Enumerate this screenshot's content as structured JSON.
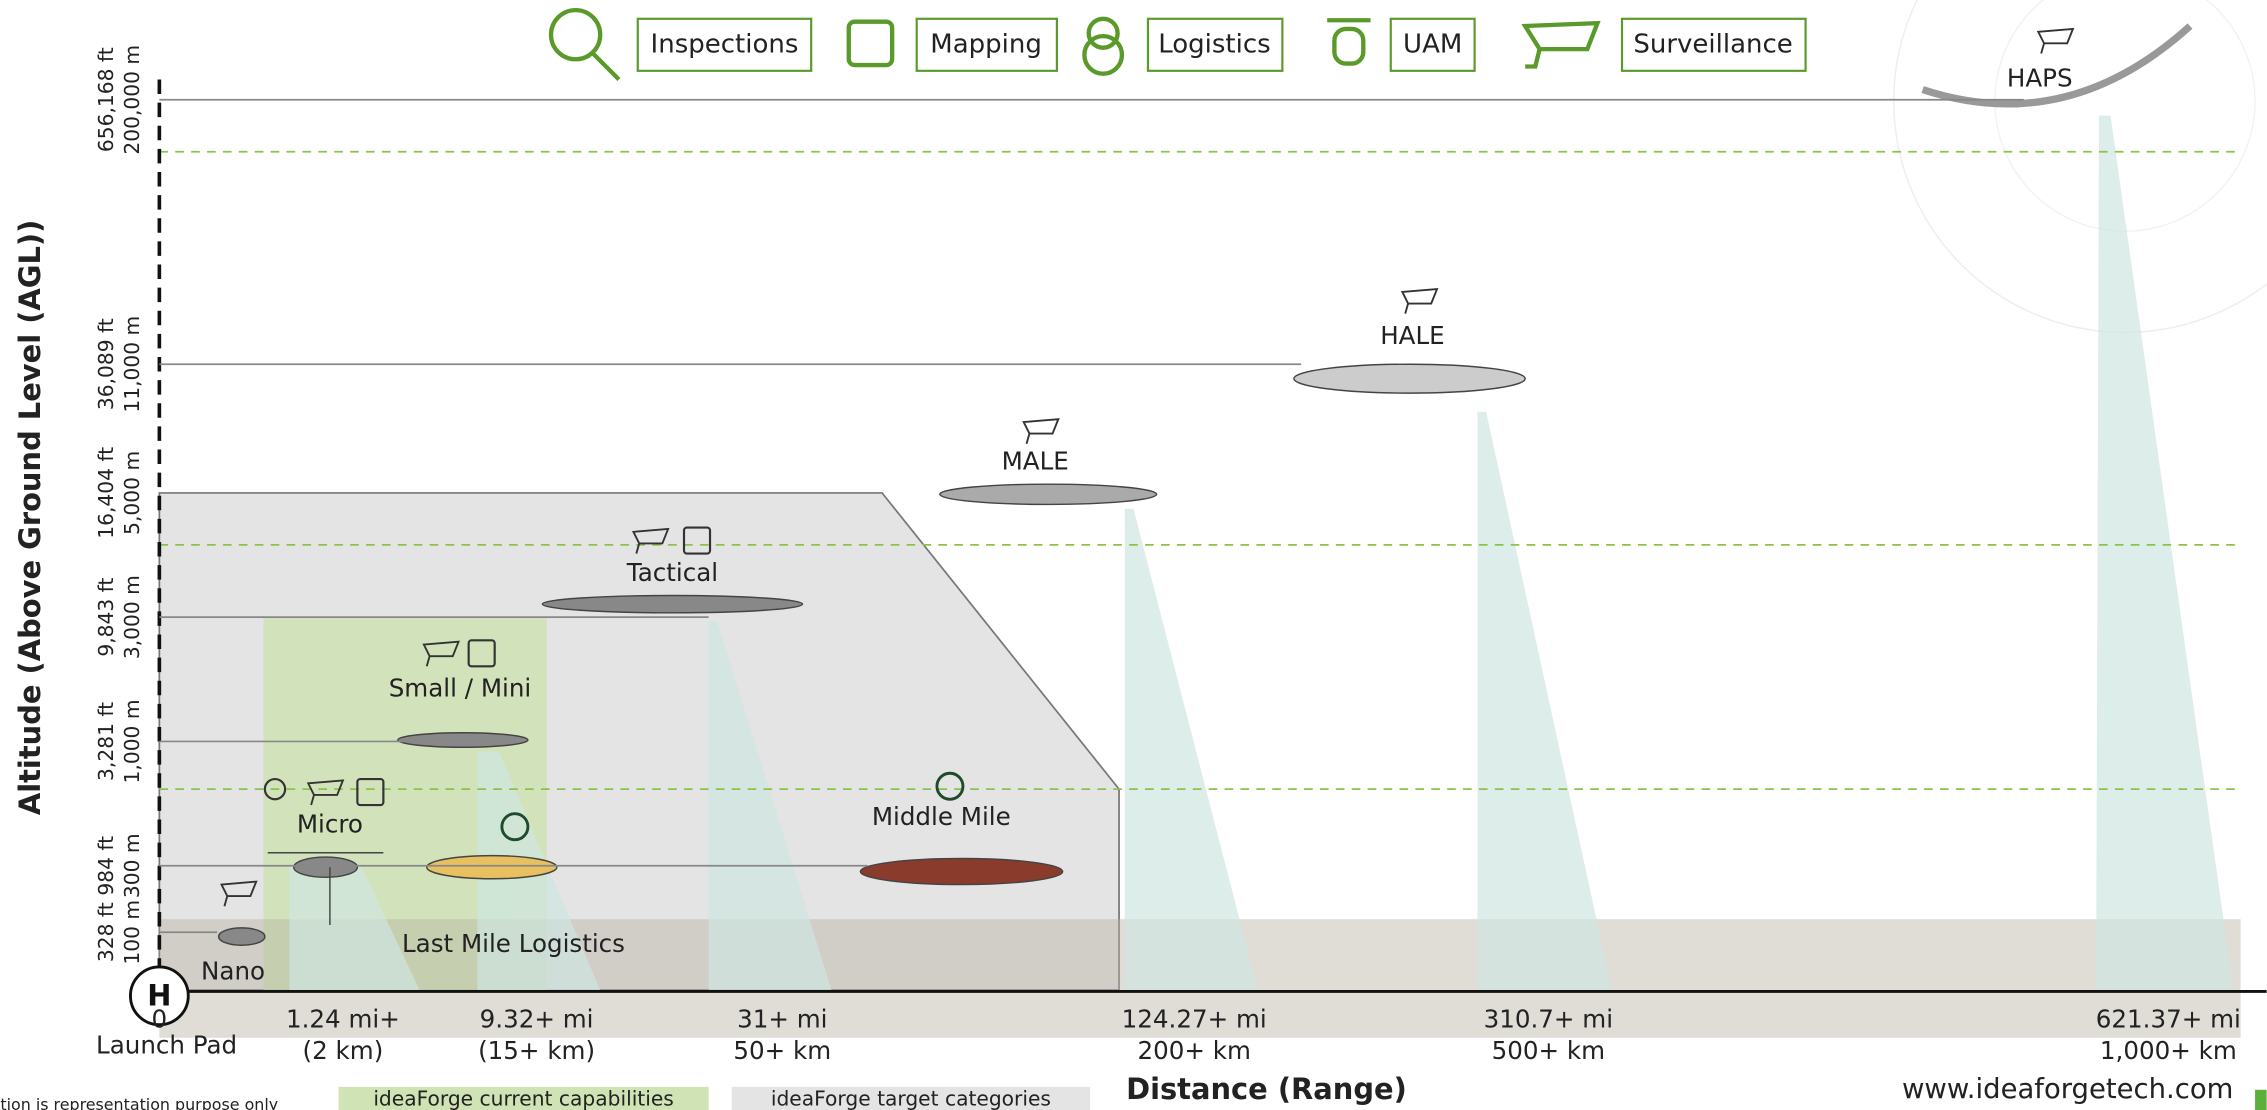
{
  "legend": [
    "Inspections",
    "Mapping",
    "Logistics",
    "UAM",
    "Surveillance"
  ],
  "y_axis": {
    "title": "Altitude (Above Ground Level (AGL))",
    "levels": [
      {
        "meters": "100 m",
        "feet": "328 ft"
      },
      {
        "meters": "300 m",
        "feet": "984 ft"
      },
      {
        "meters": "1,000 m",
        "feet": "3,281 ft"
      },
      {
        "meters": "3,000 m",
        "feet": "9,843 ft"
      },
      {
        "meters": "5,000 m",
        "feet": "16,404 ft"
      },
      {
        "meters": "11,000 m",
        "feet": "36,089 ft"
      },
      {
        "meters": "200,000 m",
        "feet": "656,168 ft"
      }
    ]
  },
  "x_axis": {
    "title": "Distance (Range)",
    "origin": "0",
    "origin_label": "Launch Pad",
    "ranges": [
      {
        "miles": "1.24 mi+",
        "km": "(2 km)"
      },
      {
        "miles": "9.32+ mi",
        "km": "(15+ km)"
      },
      {
        "miles": "31+ mi",
        "km": "50+ km"
      },
      {
        "miles": "124.27+ mi",
        "km": "200+ km"
      },
      {
        "miles": "310.7+ mi",
        "km": "500+ km"
      },
      {
        "miles": "621.37+ mi",
        "km": "1,000+ km"
      }
    ]
  },
  "categories": [
    "Nano",
    "Micro",
    "Last Mile Logistics",
    "Small / Mini",
    "Tactical",
    "Middle Mile",
    "MALE",
    "HALE",
    "HAPS"
  ],
  "footer": {
    "note": "tion is representation purpose only",
    "current": "ideaForge current capabilities",
    "target": "ideaForge target categories",
    "website": "www.ideaforgetech.com"
  }
}
